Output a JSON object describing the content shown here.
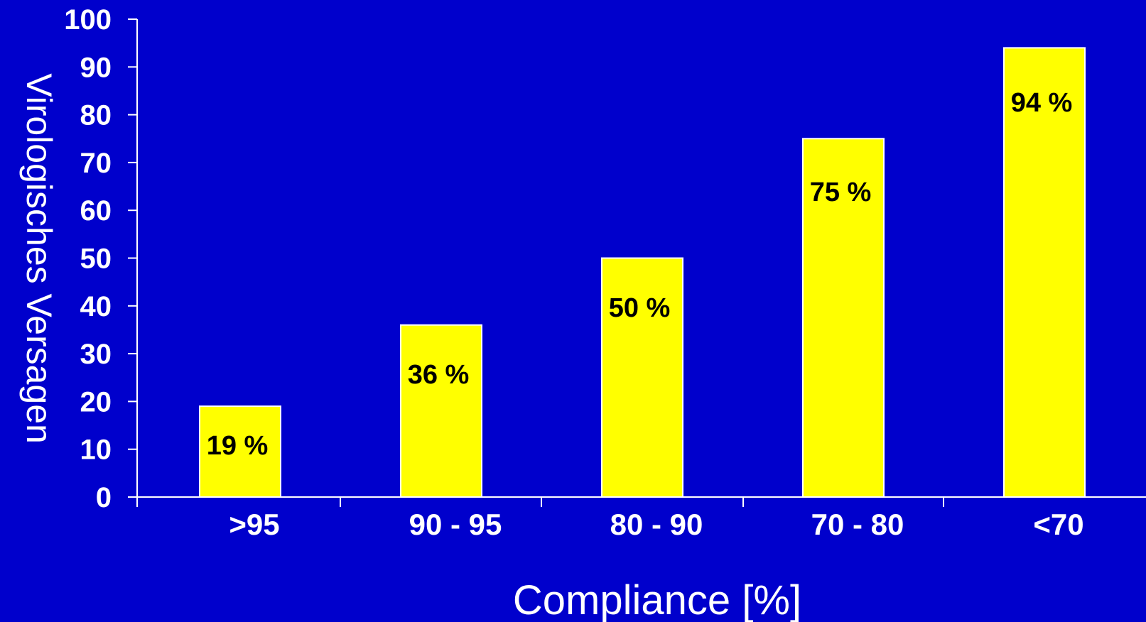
{
  "colors": {
    "background": "#0000cc",
    "bar_fill": "#ffff00",
    "axis": "#ffffff",
    "text": "#ffffff",
    "bar_text": "#000000"
  },
  "chart_data": {
    "type": "bar",
    "categories": [
      ">95",
      "90 - 95",
      "80 - 90",
      "70 - 80",
      "<70"
    ],
    "values": [
      19,
      36,
      50,
      75,
      94
    ],
    "data_labels": [
      "19 %",
      "36 %",
      "50 %",
      "75 %",
      "94 %"
    ],
    "title": "",
    "xlabel": "Compliance  [%]",
    "ylabel": "Virologisches Versagen",
    "ylim": [
      0,
      100
    ],
    "yticks": [
      "0",
      "10",
      "20",
      "30",
      "40",
      "50",
      "60",
      "70",
      "80",
      "90",
      "100"
    ],
    "grid": false,
    "legend": "none"
  }
}
